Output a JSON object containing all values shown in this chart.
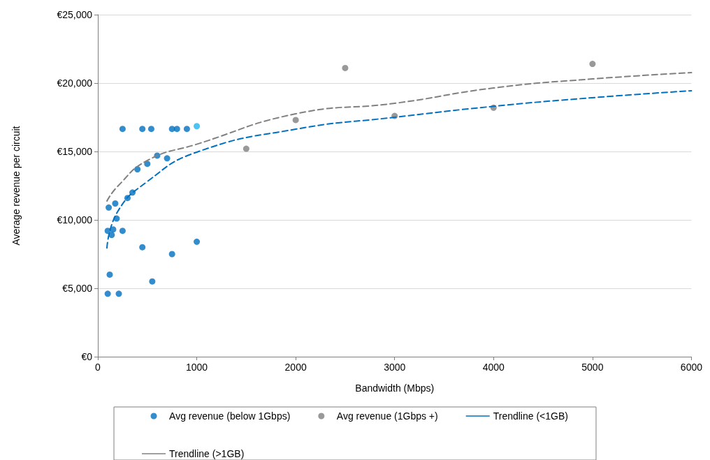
{
  "chart_data": {
    "type": "scatter",
    "xlabel": "Bandwidth (Mbps)",
    "ylabel": "Average revenue per circuit",
    "xlim": [
      0,
      6000
    ],
    "xticks": [
      0,
      1000,
      2000,
      3000,
      4000,
      5000,
      6000
    ],
    "ylim": [
      0,
      25000
    ],
    "yticks": [
      {
        "value": 0,
        "label": "€0"
      },
      {
        "value": 5000,
        "label": "€5,000"
      },
      {
        "value": 10000,
        "label": "€10,000"
      },
      {
        "value": 15000,
        "label": "€15,000"
      },
      {
        "value": 20000,
        "label": "€20,000"
      },
      {
        "value": 25000,
        "label": "€25,000"
      }
    ],
    "grid": "y",
    "legend": "bottom",
    "marker": "circle",
    "series": [
      {
        "name": "Avg revenue (below 1Gbps)",
        "color": "#0070c0",
        "x": [
          100,
          110,
          120,
          100,
          140,
          155,
          176,
          190,
          212,
          250,
          250,
          300,
          350,
          400,
          450,
          450,
          500,
          540,
          550,
          600,
          700,
          750,
          750,
          800,
          900,
          1000,
          1000
        ],
        "values": [
          4600,
          10900,
          6000,
          9200,
          8900,
          9300,
          11200,
          10100,
          4600,
          16650,
          9200,
          11600,
          12000,
          13700,
          16650,
          8000,
          14100,
          16650,
          5500,
          14700,
          14500,
          16650,
          7500,
          16650,
          16650,
          8400,
          16850
        ],
        "colors": [
          "#0070c0",
          "#0070c0",
          "#0070c0",
          "#0070c0",
          "#0070c0",
          "#0070c0",
          "#0070c0",
          "#0070c0",
          "#0070c0",
          "#0070c0",
          "#0070c0",
          "#0070c0",
          "#0070c0",
          "#0070c0",
          "#0070c0",
          "#0070c0",
          "#0070c0",
          "#0070c0",
          "#0070c0",
          "#0070c0",
          "#0070c0",
          "#0070c0",
          "#0070c0",
          "#0070c0",
          "#0070c0",
          "#0070c0",
          "#1eb4f0"
        ]
      },
      {
        "name": "Avg revenue (1Gbps +)",
        "color": "#808080",
        "x": [
          1500,
          2000,
          2500,
          3000,
          4000,
          5000
        ],
        "values": [
          15200,
          17300,
          21100,
          17600,
          18200,
          21400
        ]
      },
      {
        "name": "Trendline (<1GB)",
        "type": "line",
        "color": "#0070c0",
        "line_style": "dashed",
        "marker": "none",
        "x": [
          92,
          200,
          500,
          1000,
          2000,
          3000,
          4000,
          5000,
          6000
        ],
        "values": [
          7950,
          10600,
          12800,
          14950,
          16630,
          17500,
          18300,
          18930,
          19440
        ]
      },
      {
        "name": "Trendline (>1GB)",
        "type": "line",
        "color": "#808080",
        "line_style": "dashed",
        "marker": "none",
        "x": [
          92,
          200,
          500,
          1000,
          2000,
          3000,
          4000,
          5000,
          6000
        ],
        "values": [
          11380,
          12450,
          14340,
          15530,
          17750,
          18520,
          19640,
          20300,
          20760
        ]
      }
    ]
  }
}
